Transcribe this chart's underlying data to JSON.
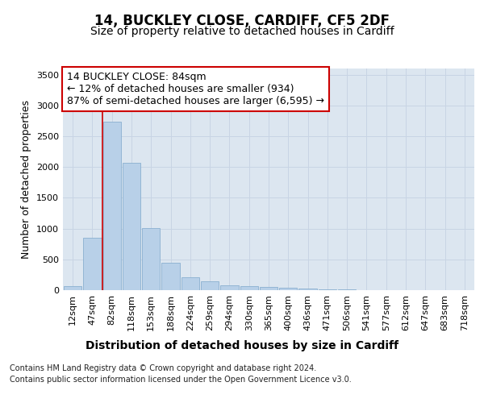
{
  "title1": "14, BUCKLEY CLOSE, CARDIFF, CF5 2DF",
  "title2": "Size of property relative to detached houses in Cardiff",
  "xlabel": "Distribution of detached houses by size in Cardiff",
  "ylabel": "Number of detached properties",
  "bar_labels": [
    "12sqm",
    "47sqm",
    "82sqm",
    "118sqm",
    "153sqm",
    "188sqm",
    "224sqm",
    "259sqm",
    "294sqm",
    "330sqm",
    "365sqm",
    "400sqm",
    "436sqm",
    "471sqm",
    "506sqm",
    "541sqm",
    "577sqm",
    "612sqm",
    "647sqm",
    "683sqm",
    "718sqm"
  ],
  "bar_values": [
    60,
    850,
    2730,
    2070,
    1010,
    450,
    215,
    145,
    80,
    65,
    50,
    40,
    25,
    18,
    8,
    5,
    3,
    2,
    2,
    1,
    1
  ],
  "bar_color": "#b8d0e8",
  "bar_edge_color": "#8ab0d0",
  "vline_x": 1.5,
  "annotation_text_line1": "14 BUCKLEY CLOSE: 84sqm",
  "annotation_text_line2": "← 12% of detached houses are smaller (934)",
  "annotation_text_line3": "87% of semi-detached houses are larger (6,595) →",
  "annotation_box_color": "#ffffff",
  "annotation_border_color": "#cc0000",
  "vline_color": "#cc0000",
  "ylim": [
    0,
    3600
  ],
  "yticks": [
    0,
    500,
    1000,
    1500,
    2000,
    2500,
    3000,
    3500
  ],
  "grid_color": "#c8d4e4",
  "background_color": "#dce6f0",
  "footer_text1": "Contains HM Land Registry data © Crown copyright and database right 2024.",
  "footer_text2": "Contains public sector information licensed under the Open Government Licence v3.0.",
  "title1_fontsize": 12,
  "title2_fontsize": 10,
  "xlabel_fontsize": 10,
  "ylabel_fontsize": 9,
  "tick_fontsize": 8,
  "footer_fontsize": 7,
  "annot_fontsize": 9
}
